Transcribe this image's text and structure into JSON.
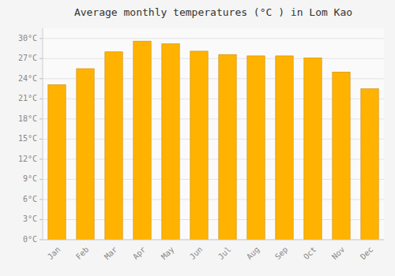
{
  "chart_data": {
    "type": "bar",
    "title": "Average monthly temperatures (°C ) in Lom Kao",
    "categories": [
      "Jan",
      "Feb",
      "Mar",
      "Apr",
      "May",
      "Jun",
      "Jul",
      "Aug",
      "Sep",
      "Oct",
      "Nov",
      "Dec"
    ],
    "values": [
      23.1,
      25.5,
      28.0,
      29.6,
      29.2,
      28.1,
      27.6,
      27.4,
      27.4,
      27.1,
      25.0,
      22.5
    ],
    "color": "#FFB300",
    "ylim": [
      0,
      31.5
    ],
    "yticks": [
      {
        "value": 0,
        "label": "0°C"
      },
      {
        "value": 3,
        "label": "3°C"
      },
      {
        "value": 6,
        "label": "6°C"
      },
      {
        "value": 9,
        "label": "9°C"
      },
      {
        "value": 12,
        "label": "12°C"
      },
      {
        "value": 15,
        "label": "15°C"
      },
      {
        "value": 18,
        "label": "18°C"
      },
      {
        "value": 21,
        "label": "21°C"
      },
      {
        "value": 24,
        "label": "24°C"
      },
      {
        "value": 27,
        "label": "27°C"
      },
      {
        "value": 30,
        "label": "30°C"
      }
    ],
    "grid": true
  }
}
